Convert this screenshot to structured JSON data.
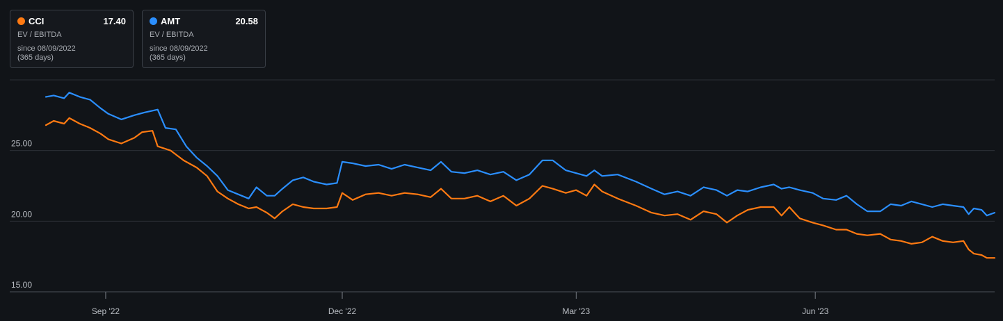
{
  "legend": [
    {
      "ticker": "CCI",
      "value": "17.40",
      "metric": "EV / EBITDA",
      "since": "since 08/09/2022",
      "days": "(365 days)",
      "color": "#ff7a12"
    },
    {
      "ticker": "AMT",
      "value": "20.58",
      "metric": "EV / EBITDA",
      "since": "since 08/09/2022",
      "days": "(365 days)",
      "color": "#2b8fff"
    }
  ],
  "chart_data": {
    "type": "line",
    "title": "",
    "xlabel": "",
    "ylabel": "",
    "x_range": [
      "2022-08-09",
      "2023-08-09"
    ],
    "ylim": [
      15,
      30
    ],
    "yticks": [
      {
        "value": 15,
        "label": "15.00"
      },
      {
        "value": 20,
        "label": "20.00"
      },
      {
        "value": 25,
        "label": "25.00"
      }
    ],
    "xticks": [
      {
        "date": "2022-09-01",
        "label": "Sep '22"
      },
      {
        "date": "2022-12-01",
        "label": "Dec '22"
      },
      {
        "date": "2023-03-01",
        "label": "Mar '23"
      },
      {
        "date": "2023-06-01",
        "label": "Jun '23"
      }
    ],
    "grid": true,
    "series": [
      {
        "name": "CCI",
        "color": "#ff7a12",
        "points": [
          [
            "2022-08-09",
            26.8
          ],
          [
            "2022-08-12",
            27.1
          ],
          [
            "2022-08-16",
            26.9
          ],
          [
            "2022-08-18",
            27.3
          ],
          [
            "2022-08-22",
            26.9
          ],
          [
            "2022-08-26",
            26.6
          ],
          [
            "2022-08-30",
            26.2
          ],
          [
            "2022-09-02",
            25.8
          ],
          [
            "2022-09-07",
            25.5
          ],
          [
            "2022-09-12",
            25.9
          ],
          [
            "2022-09-15",
            26.3
          ],
          [
            "2022-09-19",
            26.4
          ],
          [
            "2022-09-21",
            25.3
          ],
          [
            "2022-09-26",
            25.0
          ],
          [
            "2022-10-01",
            24.3
          ],
          [
            "2022-10-06",
            23.8
          ],
          [
            "2022-10-10",
            23.2
          ],
          [
            "2022-10-14",
            22.1
          ],
          [
            "2022-10-18",
            21.6
          ],
          [
            "2022-10-22",
            21.2
          ],
          [
            "2022-10-26",
            20.9
          ],
          [
            "2022-10-29",
            21.0
          ],
          [
            "2022-11-02",
            20.6
          ],
          [
            "2022-11-05",
            20.2
          ],
          [
            "2022-11-08",
            20.7
          ],
          [
            "2022-11-12",
            21.2
          ],
          [
            "2022-11-16",
            21.0
          ],
          [
            "2022-11-20",
            20.9
          ],
          [
            "2022-11-25",
            20.9
          ],
          [
            "2022-11-29",
            21.0
          ],
          [
            "2022-12-01",
            22.0
          ],
          [
            "2022-12-05",
            21.5
          ],
          [
            "2022-12-10",
            21.9
          ],
          [
            "2022-12-15",
            22.0
          ],
          [
            "2022-12-20",
            21.8
          ],
          [
            "2022-12-25",
            22.0
          ],
          [
            "2022-12-30",
            21.9
          ],
          [
            "2023-01-04",
            21.7
          ],
          [
            "2023-01-08",
            22.3
          ],
          [
            "2023-01-12",
            21.6
          ],
          [
            "2023-01-17",
            21.6
          ],
          [
            "2023-01-22",
            21.8
          ],
          [
            "2023-01-27",
            21.4
          ],
          [
            "2023-02-01",
            21.8
          ],
          [
            "2023-02-06",
            21.1
          ],
          [
            "2023-02-11",
            21.6
          ],
          [
            "2023-02-16",
            22.5
          ],
          [
            "2023-02-20",
            22.3
          ],
          [
            "2023-02-25",
            22.0
          ],
          [
            "2023-03-01",
            22.2
          ],
          [
            "2023-03-05",
            21.8
          ],
          [
            "2023-03-08",
            22.6
          ],
          [
            "2023-03-11",
            22.1
          ],
          [
            "2023-03-17",
            21.6
          ],
          [
            "2023-03-24",
            21.1
          ],
          [
            "2023-03-30",
            20.6
          ],
          [
            "2023-04-04",
            20.4
          ],
          [
            "2023-04-09",
            20.5
          ],
          [
            "2023-04-14",
            20.1
          ],
          [
            "2023-04-19",
            20.7
          ],
          [
            "2023-04-24",
            20.5
          ],
          [
            "2023-04-28",
            19.9
          ],
          [
            "2023-05-02",
            20.4
          ],
          [
            "2023-05-06",
            20.8
          ],
          [
            "2023-05-11",
            21.0
          ],
          [
            "2023-05-16",
            21.0
          ],
          [
            "2023-05-19",
            20.4
          ],
          [
            "2023-05-22",
            21.0
          ],
          [
            "2023-05-26",
            20.2
          ],
          [
            "2023-05-31",
            19.9
          ],
          [
            "2023-06-04",
            19.7
          ],
          [
            "2023-06-09",
            19.4
          ],
          [
            "2023-06-13",
            19.4
          ],
          [
            "2023-06-17",
            19.1
          ],
          [
            "2023-06-21",
            19.0
          ],
          [
            "2023-06-26",
            19.1
          ],
          [
            "2023-06-30",
            18.7
          ],
          [
            "2023-07-04",
            18.6
          ],
          [
            "2023-07-08",
            18.4
          ],
          [
            "2023-07-12",
            18.5
          ],
          [
            "2023-07-16",
            18.9
          ],
          [
            "2023-07-20",
            18.6
          ],
          [
            "2023-07-24",
            18.5
          ],
          [
            "2023-07-28",
            18.6
          ],
          [
            "2023-07-30",
            18.0
          ],
          [
            "2023-08-01",
            17.7
          ],
          [
            "2023-08-04",
            17.6
          ],
          [
            "2023-08-06",
            17.4
          ],
          [
            "2023-08-09",
            17.4
          ]
        ]
      },
      {
        "name": "AMT",
        "color": "#2b8fff",
        "points": [
          [
            "2022-08-09",
            28.8
          ],
          [
            "2022-08-12",
            28.9
          ],
          [
            "2022-08-16",
            28.7
          ],
          [
            "2022-08-18",
            29.1
          ],
          [
            "2022-08-22",
            28.8
          ],
          [
            "2022-08-26",
            28.6
          ],
          [
            "2022-08-30",
            28.0
          ],
          [
            "2022-09-02",
            27.6
          ],
          [
            "2022-09-07",
            27.2
          ],
          [
            "2022-09-12",
            27.5
          ],
          [
            "2022-09-16",
            27.7
          ],
          [
            "2022-09-21",
            27.9
          ],
          [
            "2022-09-24",
            26.6
          ],
          [
            "2022-09-28",
            26.5
          ],
          [
            "2022-10-02",
            25.3
          ],
          [
            "2022-10-06",
            24.5
          ],
          [
            "2022-10-10",
            23.9
          ],
          [
            "2022-10-14",
            23.2
          ],
          [
            "2022-10-18",
            22.2
          ],
          [
            "2022-10-22",
            21.9
          ],
          [
            "2022-10-26",
            21.6
          ],
          [
            "2022-10-29",
            22.4
          ],
          [
            "2022-11-02",
            21.8
          ],
          [
            "2022-11-05",
            21.8
          ],
          [
            "2022-11-08",
            22.3
          ],
          [
            "2022-11-12",
            22.9
          ],
          [
            "2022-11-16",
            23.1
          ],
          [
            "2022-11-20",
            22.8
          ],
          [
            "2022-11-25",
            22.6
          ],
          [
            "2022-11-29",
            22.7
          ],
          [
            "2022-12-01",
            24.2
          ],
          [
            "2022-12-05",
            24.1
          ],
          [
            "2022-12-10",
            23.9
          ],
          [
            "2022-12-15",
            24.0
          ],
          [
            "2022-12-20",
            23.7
          ],
          [
            "2022-12-25",
            24.0
          ],
          [
            "2022-12-30",
            23.8
          ],
          [
            "2023-01-04",
            23.6
          ],
          [
            "2023-01-08",
            24.2
          ],
          [
            "2023-01-12",
            23.5
          ],
          [
            "2023-01-17",
            23.4
          ],
          [
            "2023-01-22",
            23.6
          ],
          [
            "2023-01-27",
            23.3
          ],
          [
            "2023-02-01",
            23.5
          ],
          [
            "2023-02-06",
            22.9
          ],
          [
            "2023-02-11",
            23.3
          ],
          [
            "2023-02-16",
            24.3
          ],
          [
            "2023-02-20",
            24.3
          ],
          [
            "2023-02-25",
            23.6
          ],
          [
            "2023-03-01",
            23.4
          ],
          [
            "2023-03-05",
            23.2
          ],
          [
            "2023-03-08",
            23.6
          ],
          [
            "2023-03-11",
            23.2
          ],
          [
            "2023-03-17",
            23.3
          ],
          [
            "2023-03-24",
            22.8
          ],
          [
            "2023-03-30",
            22.3
          ],
          [
            "2023-04-04",
            21.9
          ],
          [
            "2023-04-09",
            22.1
          ],
          [
            "2023-04-14",
            21.8
          ],
          [
            "2023-04-19",
            22.4
          ],
          [
            "2023-04-24",
            22.2
          ],
          [
            "2023-04-28",
            21.8
          ],
          [
            "2023-05-02",
            22.2
          ],
          [
            "2023-05-06",
            22.1
          ],
          [
            "2023-05-11",
            22.4
          ],
          [
            "2023-05-16",
            22.6
          ],
          [
            "2023-05-19",
            22.3
          ],
          [
            "2023-05-22",
            22.4
          ],
          [
            "2023-05-26",
            22.2
          ],
          [
            "2023-05-31",
            22.0
          ],
          [
            "2023-06-04",
            21.6
          ],
          [
            "2023-06-09",
            21.5
          ],
          [
            "2023-06-13",
            21.8
          ],
          [
            "2023-06-17",
            21.2
          ],
          [
            "2023-06-21",
            20.7
          ],
          [
            "2023-06-26",
            20.7
          ],
          [
            "2023-06-30",
            21.2
          ],
          [
            "2023-07-04",
            21.1
          ],
          [
            "2023-07-08",
            21.4
          ],
          [
            "2023-07-12",
            21.2
          ],
          [
            "2023-07-16",
            21.0
          ],
          [
            "2023-07-20",
            21.2
          ],
          [
            "2023-07-24",
            21.1
          ],
          [
            "2023-07-28",
            21.0
          ],
          [
            "2023-07-30",
            20.5
          ],
          [
            "2023-08-01",
            20.9
          ],
          [
            "2023-08-04",
            20.8
          ],
          [
            "2023-08-06",
            20.4
          ],
          [
            "2023-08-09",
            20.6
          ]
        ]
      }
    ]
  }
}
